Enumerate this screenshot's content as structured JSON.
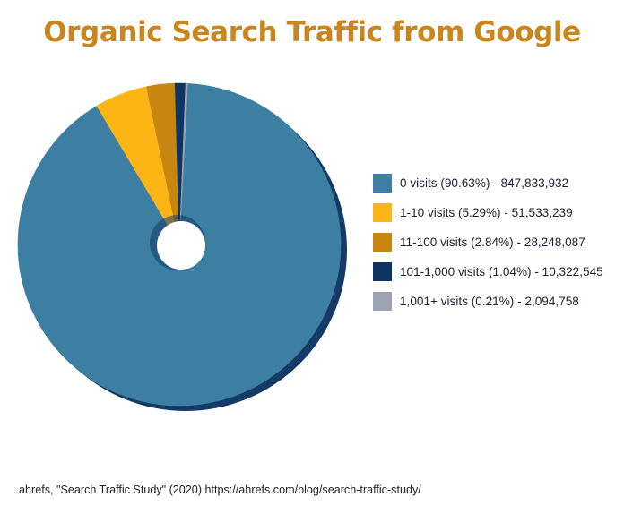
{
  "chart_data": {
    "type": "pie",
    "title": "Organic Search Traffic from Google",
    "slices": [
      {
        "label": "0 visits (90.63%) - 847,833,932",
        "value": 90.63,
        "color": "#3d7ea3"
      },
      {
        "label": "1-10 visits (5.29%) - 51,533,239",
        "value": 5.29,
        "color": "#fdb515"
      },
      {
        "label": "11-100 visits (2.84%) - 28,248,087",
        "value": 2.84,
        "color": "#c6860f"
      },
      {
        "label": "101-1,000 visits (1.04%) - 10,322,545",
        "value": 1.04,
        "color": "#0f3461"
      },
      {
        "label": "1,001+ visits (0.21%) - 2,094,758",
        "value": 0.21,
        "color": "#9ba2b2"
      }
    ],
    "legend_position": "right",
    "shadow_color": "#143b66"
  },
  "source": "ahrefs, \"Search Traffic Study\" (2020) https://ahrefs.com/blog/search-traffic-study/"
}
